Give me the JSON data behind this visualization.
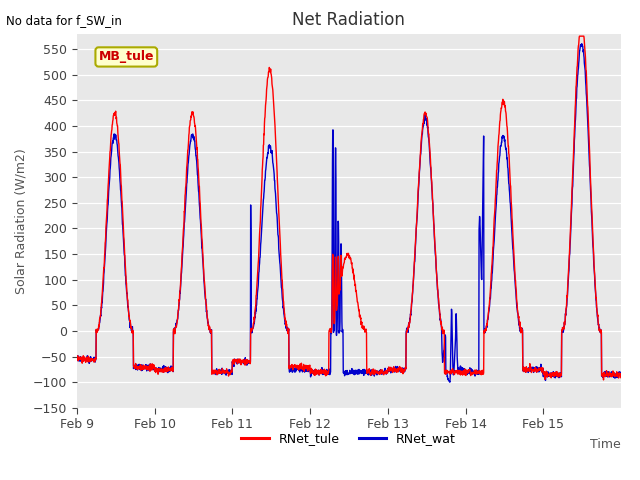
{
  "title": "Net Radiation",
  "xlabel": "Time",
  "ylabel": "Solar Radiation (W/m2)",
  "annotation": "No data for f_SW_in",
  "legend_label1": "RNet_tule",
  "legend_label2": "RNet_wat",
  "color1": "#FF0000",
  "color2": "#0000CC",
  "ylim": [
    -150,
    580
  ],
  "yticks": [
    -150,
    -100,
    -50,
    0,
    50,
    100,
    150,
    200,
    250,
    300,
    350,
    400,
    450,
    500,
    550
  ],
  "bg_color": "#E8E8E8",
  "textbox_label": "MB_tule",
  "textbox_fg": "#CC0000",
  "textbox_bg": "#FFFFCC",
  "textbox_edge": "#AAAA00",
  "line_width": 1.0,
  "xtick_labels": [
    "Feb 9",
    "Feb 10",
    "Feb 11",
    "Feb 12",
    "Feb 13",
    "Feb 14",
    "Feb 15"
  ],
  "xtick_positions": [
    0,
    288,
    576,
    864,
    1152,
    1440,
    1728
  ]
}
